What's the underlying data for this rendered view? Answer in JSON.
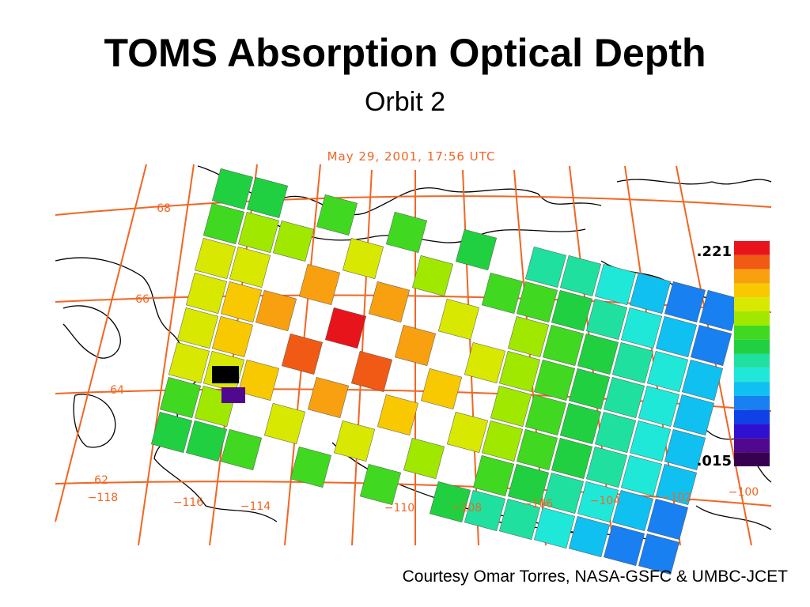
{
  "header": {
    "title": "TOMS Absorption Optical Depth",
    "subtitle": "Orbit 2"
  },
  "map": {
    "timestamp": "May 29, 2001, 17:56 UTC",
    "latitude_labels": [
      "68",
      "66",
      "64",
      "62"
    ],
    "longitude_labels": [
      "−118",
      "−116",
      "−114",
      "−110",
      "−108",
      "−106",
      "−104",
      "−102",
      "−100"
    ],
    "colorbar": {
      "max_label": ".221",
      "min_label": ".015"
    }
  },
  "footer": {
    "credit": "Courtesy Omar Torres, NASA-GSFC & UMBC-JCET"
  }
}
